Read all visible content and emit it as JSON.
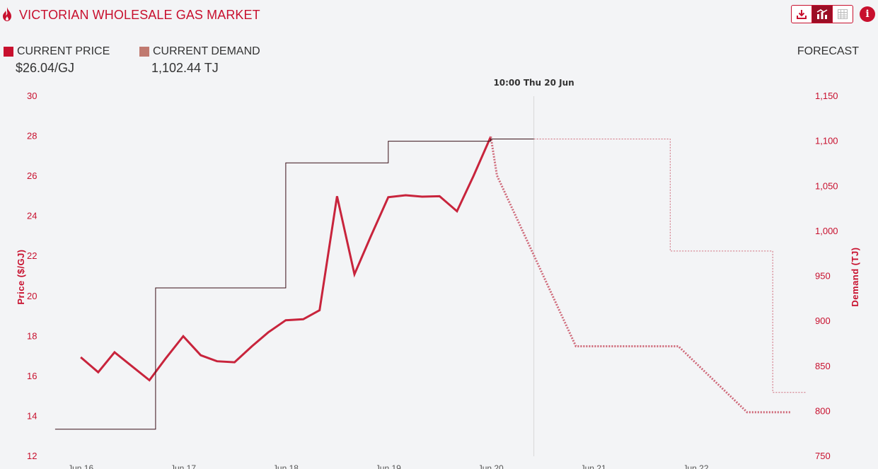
{
  "header": {
    "title": "VICTORIAN WHOLESALE GAS MARKET",
    "icons": [
      "flame-icon",
      "download-icon",
      "chart-icon",
      "table-icon",
      "info-icon"
    ]
  },
  "stats": {
    "price_label": "CURRENT PRICE",
    "price_value": "$26.04/GJ",
    "demand_label": "CURRENT DEMAND",
    "demand_value": "1,102.44 TJ",
    "forecast_label": "FORECAST"
  },
  "colors": {
    "accent": "#c8102e",
    "price_line": "#c8243c",
    "demand_line": "#3a1018",
    "forecast_line": "#cf6a7a",
    "demand_swatch": "#c07a70",
    "marker_line": "#d8d8d8"
  },
  "chart_data": {
    "type": "line",
    "marker_label": "10:00 Thu 20 Jun",
    "marker_x": 20.42,
    "x_ticks": [
      {
        "x": 16,
        "label": "Jun 16"
      },
      {
        "x": 17,
        "label": "Jun 17"
      },
      {
        "x": 18,
        "label": "Jun 18"
      },
      {
        "x": 19,
        "label": "Jun 19"
      },
      {
        "x": 20,
        "label": "Jun 20"
      },
      {
        "x": 21,
        "label": "Jun 21"
      },
      {
        "x": 22,
        "label": "Jun 22"
      }
    ],
    "xlim": [
      15.73,
      23.08
    ],
    "y_left": {
      "label": "Price ($/GJ)",
      "ylim": [
        12,
        30
      ],
      "ticks": [
        "12",
        "14",
        "16",
        "18",
        "20",
        "22",
        "24",
        "26",
        "28",
        "30"
      ]
    },
    "y_right": {
      "label": "Demand (TJ)",
      "ylim": [
        750,
        1150
      ],
      "ticks": [
        "750",
        "800",
        "850",
        "900",
        "950",
        "1,000",
        "1,050",
        "1,100",
        "1,150"
      ]
    },
    "series": [
      {
        "axis": "left",
        "style": "line",
        "x": [
          16.0,
          16.17,
          16.33,
          16.5,
          16.67,
          16.83,
          17.0,
          17.17,
          17.33,
          17.5,
          17.67,
          17.83,
          18.0,
          18.17,
          18.33,
          18.5,
          18.67,
          18.83,
          19.0,
          19.17,
          19.33,
          19.5,
          19.67,
          19.83,
          20.0
        ],
        "values": [
          16.95,
          16.2,
          17.2,
          16.5,
          15.8,
          16.9,
          18.0,
          17.05,
          16.75,
          16.7,
          17.5,
          18.2,
          18.8,
          18.85,
          19.3,
          25.0,
          21.1,
          23.0,
          24.95,
          25.05,
          24.98,
          25.0,
          24.25,
          26.0,
          27.98
        ]
      },
      {
        "axis": "left",
        "style": "forecast",
        "x": [
          20.0,
          20.06,
          20.83,
          21.83,
          22.5,
          22.93
        ],
        "values": [
          27.98,
          26.04,
          17.5,
          17.5,
          14.2,
          14.2
        ]
      },
      {
        "axis": "right",
        "style": "step",
        "x": [
          15.75,
          16.73,
          16.73,
          18.0,
          18.0,
          19.0,
          19.0,
          20.0,
          20.0,
          20.42
        ],
        "values": [
          780,
          780,
          937,
          937,
          1076,
          1076,
          1100,
          1100,
          1102.44,
          1102.44
        ]
      },
      {
        "axis": "right",
        "style": "step-forecast",
        "x": [
          20.42,
          21.75,
          21.75,
          22.75,
          22.75,
          23.08
        ],
        "values": [
          1102.44,
          1102.44,
          978,
          978,
          821,
          821
        ]
      }
    ]
  }
}
